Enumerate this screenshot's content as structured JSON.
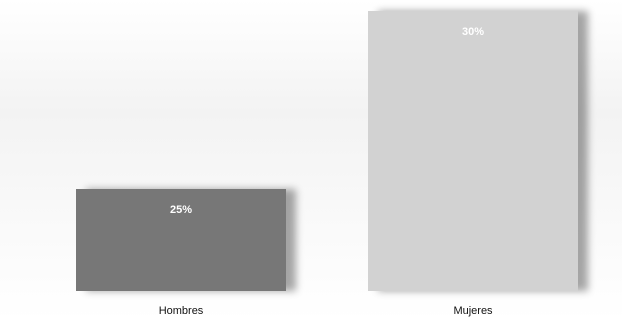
{
  "chart_data": {
    "type": "bar",
    "categories": [
      "Hombres",
      "Mujeres"
    ],
    "values": [
      25,
      30
    ],
    "value_labels": [
      "25%",
      "30%"
    ],
    "ylim": [
      0,
      30
    ],
    "grid": false,
    "legend": "none",
    "title": "",
    "xlabel": "",
    "ylabel": "",
    "colors": [
      "#777777",
      "#d2d2d2"
    ]
  }
}
